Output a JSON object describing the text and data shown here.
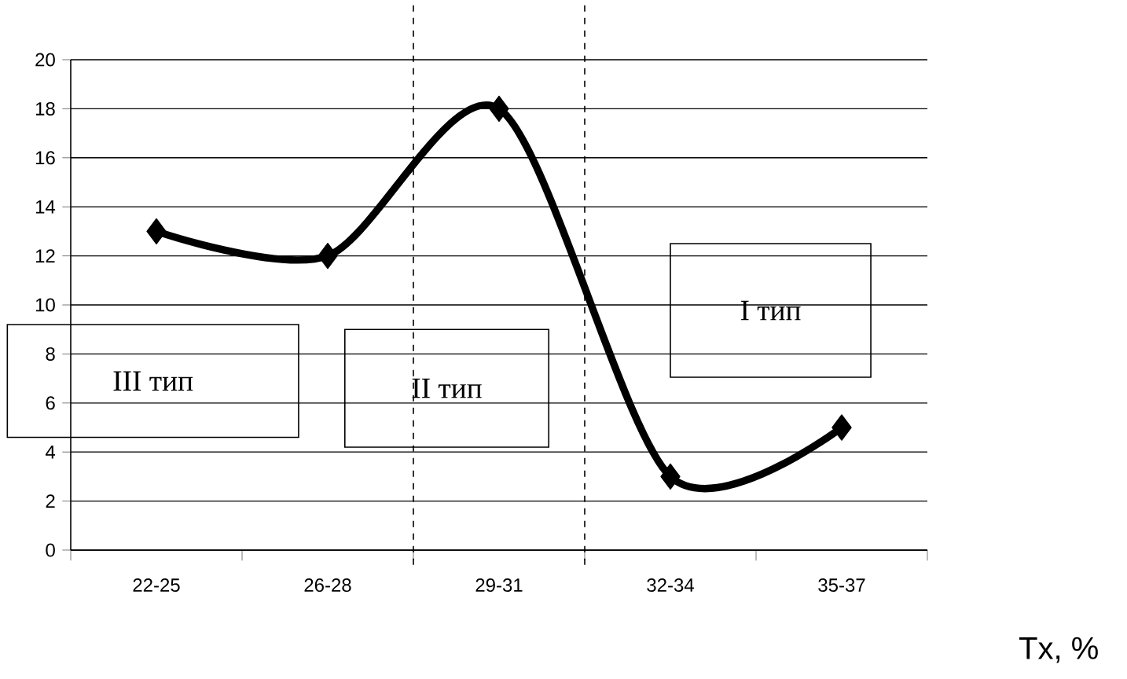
{
  "chart_data": {
    "type": "line",
    "categories": [
      "22-25",
      "26-28",
      "29-31",
      "32-34",
      "35-37"
    ],
    "values": [
      13,
      12,
      18,
      3,
      5
    ],
    "color": "#000000",
    "xlabel": "Tx, %",
    "ylim": [
      0,
      20
    ],
    "yticks": [
      0,
      2,
      4,
      6,
      8,
      10,
      12,
      14,
      16,
      18,
      20
    ],
    "grid": "y",
    "marker": "diamond",
    "line_style": "solid",
    "annotations": [
      "III тип",
      "II тип",
      "I тип"
    ]
  }
}
